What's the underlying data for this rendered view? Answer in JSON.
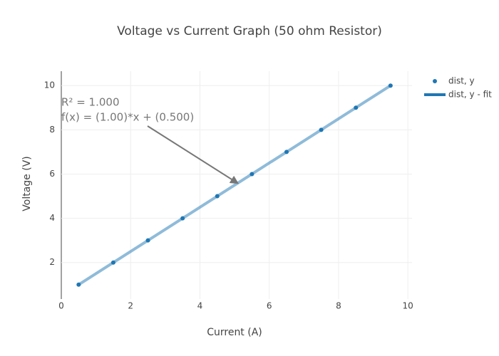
{
  "chart_data": {
    "type": "scatter",
    "title": "Voltage vs Current Graph (50 ohm Resistor)",
    "x_label": "Current (A)",
    "y_label": "Voltage (V)",
    "series": [
      {
        "name": "dist, y",
        "color": "#1f77b4",
        "mode": "markers",
        "x": [
          0.5,
          1.5,
          2.5,
          3.5,
          4.5,
          5.5,
          6.5,
          7.5,
          8.5,
          9.5
        ],
        "values": [
          1,
          2,
          3,
          4,
          5,
          6,
          7,
          8,
          9,
          10
        ]
      },
      {
        "name": "dist, y - fit",
        "color": "#1f77b4",
        "mode": "lines",
        "x": [
          0.5,
          9.5
        ],
        "values": [
          1,
          10
        ]
      }
    ],
    "annotations": [
      "R² = 1.000",
      "f(x) = (1.00)*x + (0.500)"
    ],
    "xlim": [
      0,
      10.12
    ],
    "ylim": [
      0.35,
      10.65
    ],
    "xticks": [
      0,
      2,
      4,
      6,
      8,
      10
    ],
    "yticks": [
      2,
      4,
      6,
      8,
      10
    ],
    "grid": true,
    "legend": "top-right"
  }
}
